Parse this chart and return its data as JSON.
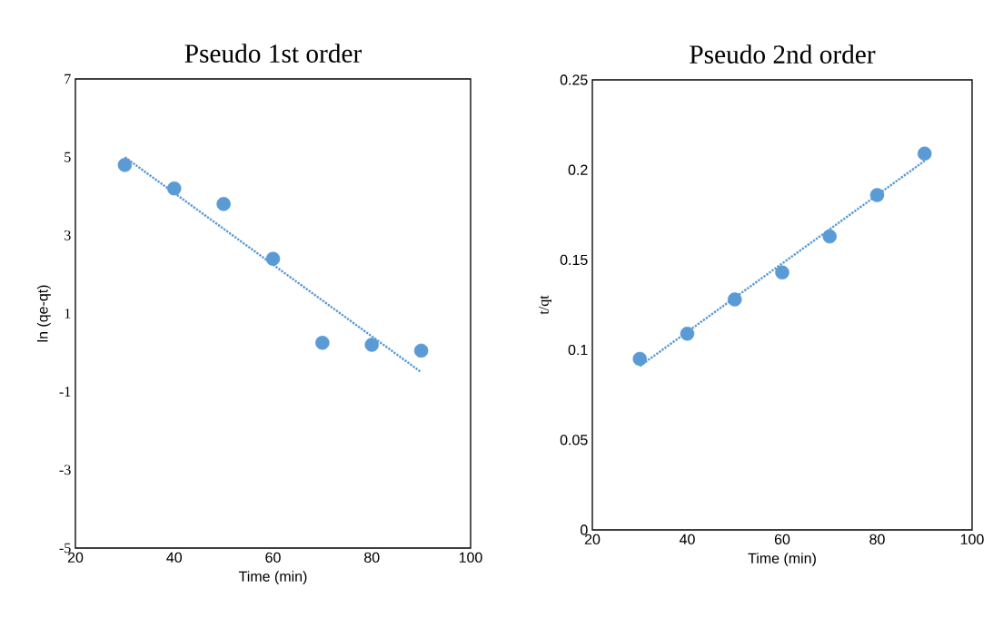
{
  "chart_data": [
    {
      "type": "scatter",
      "title": "Pseudo 1st order",
      "xlabel": "Time (min)",
      "ylabel": "ln (qe-qt)",
      "xlim": [
        20,
        100
      ],
      "ylim": [
        -5,
        7
      ],
      "xticks": [
        20,
        40,
        60,
        80,
        100
      ],
      "yticks": [
        -5,
        -3,
        -1,
        1,
        3,
        5,
        7
      ],
      "series": [
        {
          "type": "scatter",
          "color": "#5b9bd5",
          "marker": "circle",
          "x": [
            30,
            40,
            50,
            60,
            70,
            80,
            90
          ],
          "values": [
            4.8,
            4.2,
            3.8,
            2.4,
            0.25,
            0.2,
            0.05
          ]
        },
        {
          "type": "line",
          "color": "#5b9bd5",
          "marker": "none",
          "line_style": "dotted",
          "x": [
            30,
            90
          ],
          "values": [
            5.0,
            -0.5
          ]
        }
      ]
    },
    {
      "type": "scatter",
      "title": "Pseudo 2nd order",
      "xlabel": "Time (min)",
      "ylabel": "t/qt",
      "xlim": [
        20,
        100
      ],
      "ylim": [
        0,
        0.25
      ],
      "xticks": [
        20,
        40,
        60,
        80,
        100
      ],
      "yticks": [
        0,
        0.05,
        0.1,
        0.15,
        0.2,
        0.25
      ],
      "series": [
        {
          "type": "scatter",
          "color": "#5b9bd5",
          "marker": "circle",
          "x": [
            30,
            40,
            50,
            60,
            70,
            80,
            90
          ],
          "values": [
            0.095,
            0.109,
            0.128,
            0.143,
            0.163,
            0.186,
            0.209
          ]
        },
        {
          "type": "line",
          "color": "#5b9bd5",
          "marker": "none",
          "line_style": "dotted",
          "x": [
            30,
            90
          ],
          "values": [
            0.091,
            0.205
          ]
        }
      ]
    }
  ]
}
